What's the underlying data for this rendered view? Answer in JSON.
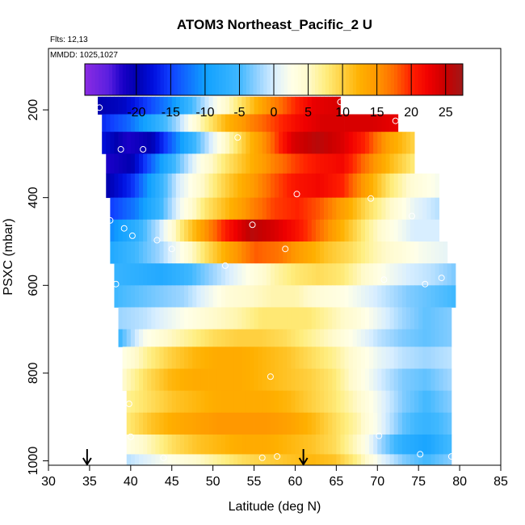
{
  "chart_data": {
    "type": "heatmap",
    "title": "ATOM3 Northeast_Pacific_2 U",
    "subtitle_flights": "Flts: 12,13",
    "subtitle_dates": "MMDD: 1025,1027",
    "xlabel": "Latitude (deg N)",
    "ylabel": "PSXC (mbar)",
    "xlim": [
      30,
      85
    ],
    "ylim": [
      1010,
      60
    ],
    "y_reversed": true,
    "x_ticks": [
      "30",
      "35",
      "40",
      "45",
      "50",
      "55",
      "60",
      "65",
      "70",
      "75",
      "80",
      "85"
    ],
    "y_ticks": [
      "200",
      "400",
      "600",
      "800",
      "1000"
    ],
    "colorbar": {
      "range": [
        -27.5,
        27.5
      ],
      "tick_labels": [
        "-20",
        "-15",
        "-10",
        "-5",
        "0",
        "5",
        "10",
        "15",
        "20",
        "25"
      ],
      "tick_values": [
        -20,
        -15,
        -10,
        -5,
        0,
        5,
        10,
        15,
        20,
        25
      ],
      "stops": [
        [
          -27.5,
          "#8a2be2"
        ],
        [
          -24,
          "#5a1fe0"
        ],
        [
          -22,
          "#1a00c8"
        ],
        [
          -20,
          "#0000b0"
        ],
        [
          -17.5,
          "#0010e0"
        ],
        [
          -15,
          "#1040ff"
        ],
        [
          -12.5,
          "#1070ff"
        ],
        [
          -10,
          "#10a0ff"
        ],
        [
          -5,
          "#40b8ff"
        ],
        [
          -2.5,
          "#90d0ff"
        ],
        [
          0,
          "#d8eeff"
        ],
        [
          2.5,
          "#ffffe8"
        ],
        [
          5,
          "#fffacc"
        ],
        [
          7.5,
          "#ffee80"
        ],
        [
          10,
          "#ffd040"
        ],
        [
          12.5,
          "#ffb000"
        ],
        [
          15,
          "#ff9800"
        ],
        [
          17.5,
          "#ff6a00"
        ],
        [
          20,
          "#ff2000"
        ],
        [
          22.5,
          "#f00000"
        ],
        [
          25,
          "#c80000"
        ],
        [
          27.5,
          "#a01818"
        ]
      ]
    },
    "layers": [
      {
        "p": [
          170,
          210
        ],
        "lat": [
          36,
          65.5
        ],
        "vals": [
          -20,
          -19,
          -15,
          -11,
          -4,
          3,
          9,
          15,
          19,
          23,
          24
        ]
      },
      {
        "p": [
          210,
          250
        ],
        "lat": [
          36.5,
          72.5
        ],
        "vals": [
          -16,
          -13,
          -8,
          -2,
          6,
          12,
          16,
          19,
          22,
          24,
          24,
          24,
          23
        ]
      },
      {
        "p": [
          250,
          300
        ],
        "lat": [
          36.5,
          74.5
        ],
        "vals": [
          -18,
          -22,
          -20,
          -12,
          -4,
          4,
          11,
          17,
          24,
          26,
          24,
          20,
          14,
          10
        ]
      },
      {
        "p": [
          300,
          345
        ],
        "lat": [
          37,
          74.5
        ],
        "vals": [
          -22,
          -20,
          -12,
          -4,
          3,
          8,
          12,
          16,
          19,
          21,
          22,
          17,
          12,
          8
        ]
      },
      {
        "p": [
          345,
          400
        ],
        "lat": [
          37,
          77.5
        ],
        "vals": [
          -20,
          -16,
          -8,
          0,
          5,
          10,
          14,
          18,
          21,
          22,
          20,
          14,
          8,
          4,
          2
        ]
      },
      {
        "p": [
          400,
          450
        ],
        "lat": [
          37.5,
          77.5
        ],
        "vals": [
          -15,
          -12,
          -6,
          2,
          8,
          12,
          16,
          19,
          20,
          18,
          14,
          9,
          5,
          1,
          -1
        ]
      },
      {
        "p": [
          450,
          500
        ],
        "lat": [
          37.5,
          77.5
        ],
        "vals": [
          -11,
          -7,
          -1,
          8,
          15,
          21,
          26,
          24,
          21,
          17,
          12,
          7,
          3,
          0,
          0
        ]
      },
      {
        "p": [
          500,
          550
        ],
        "lat": [
          37.5,
          78.5
        ],
        "vals": [
          -8,
          -5,
          -2,
          3,
          9,
          14,
          18,
          17,
          14,
          11,
          9,
          6,
          4,
          2,
          1
        ]
      },
      {
        "p": [
          550,
          600
        ],
        "lat": [
          38,
          79.5
        ],
        "vals": [
          -6,
          -7,
          -8,
          -6,
          -3,
          0,
          3,
          6,
          8,
          9,
          8,
          5,
          2,
          0,
          -1,
          -3
        ]
      },
      {
        "p": [
          600,
          650
        ],
        "lat": [
          38,
          79.5
        ],
        "vals": [
          -5,
          -4,
          -3,
          -2,
          1,
          4,
          5,
          6,
          6,
          4,
          3,
          1,
          -1,
          -3,
          -4,
          -5
        ]
      },
      {
        "p": [
          650,
          700
        ],
        "lat": [
          38.5,
          79
        ],
        "vals": [
          -2,
          -1,
          1,
          3,
          5,
          6,
          8,
          8,
          8,
          6,
          4,
          1,
          -2,
          -4,
          -3
        ]
      },
      {
        "p": [
          700,
          740
        ],
        "lat": [
          38.5,
          79
        ],
        "vals": [
          -5,
          2,
          5,
          7,
          9,
          10,
          10,
          9,
          7,
          5,
          2,
          -1,
          -3,
          -4,
          -3
        ]
      },
      {
        "p": [
          740,
          790
        ],
        "lat": [
          39,
          79
        ],
        "vals": [
          3,
          7,
          10,
          12,
          13,
          13,
          12,
          11,
          9,
          7,
          4,
          1,
          -1,
          -2,
          -1
        ]
      },
      {
        "p": [
          790,
          840
        ],
        "lat": [
          39,
          79
        ],
        "vals": [
          5,
          9,
          12,
          13,
          13,
          13,
          12,
          11,
          10,
          8,
          4,
          0,
          -3,
          -4,
          -2
        ]
      },
      {
        "p": [
          840,
          890
        ],
        "lat": [
          39.5,
          79
        ],
        "vals": [
          7,
          9,
          11,
          12,
          13,
          13,
          13,
          12,
          10,
          8,
          5,
          1,
          -3,
          -5,
          -3
        ]
      },
      {
        "p": [
          890,
          940
        ],
        "lat": [
          39.5,
          79
        ],
        "vals": [
          8,
          11,
          13,
          14,
          15,
          15,
          15,
          14,
          12,
          9,
          6,
          1,
          -4,
          -6,
          -4
        ]
      },
      {
        "p": [
          940,
          985
        ],
        "lat": [
          39.5,
          79
        ],
        "vals": [
          3,
          6,
          9,
          11,
          12,
          13,
          13,
          12,
          11,
          9,
          5,
          -2,
          -7,
          -9,
          -5
        ]
      },
      {
        "p": [
          985,
          1010
        ],
        "lat": [
          39.5,
          79
        ],
        "vals": [
          -1,
          1,
          3,
          5,
          7,
          9,
          10,
          11,
          12,
          11,
          7,
          1,
          -3,
          -5,
          -3
        ]
      }
    ],
    "samples": [
      {
        "lat": 36.2,
        "p": 195
      },
      {
        "lat": 65.5,
        "p": 182
      },
      {
        "lat": 72.2,
        "p": 225
      },
      {
        "lat": 53,
        "p": 263
      },
      {
        "lat": 38.8,
        "p": 290
      },
      {
        "lat": 41.5,
        "p": 290
      },
      {
        "lat": 60.2,
        "p": 392
      },
      {
        "lat": 69.2,
        "p": 402
      },
      {
        "lat": 37.5,
        "p": 452
      },
      {
        "lat": 39.2,
        "p": 470
      },
      {
        "lat": 40.2,
        "p": 487
      },
      {
        "lat": 43.2,
        "p": 497
      },
      {
        "lat": 45,
        "p": 517
      },
      {
        "lat": 54.8,
        "p": 462
      },
      {
        "lat": 58.8,
        "p": 517
      },
      {
        "lat": 74.2,
        "p": 442
      },
      {
        "lat": 51.5,
        "p": 555
      },
      {
        "lat": 38.2,
        "p": 597
      },
      {
        "lat": 70.8,
        "p": 587
      },
      {
        "lat": 77.8,
        "p": 583
      },
      {
        "lat": 75.8,
        "p": 597
      },
      {
        "lat": 57,
        "p": 808
      },
      {
        "lat": 39.8,
        "p": 870
      },
      {
        "lat": 70.2,
        "p": 943
      },
      {
        "lat": 75.2,
        "p": 985
      },
      {
        "lat": 79,
        "p": 990
      },
      {
        "lat": 44,
        "p": 993
      },
      {
        "lat": 56,
        "p": 993
      },
      {
        "lat": 57.8,
        "p": 990
      },
      {
        "lat": 40,
        "p": 945
      }
    ],
    "markers": [
      {
        "lat": 34.7
      },
      {
        "lat": 61
      }
    ]
  }
}
